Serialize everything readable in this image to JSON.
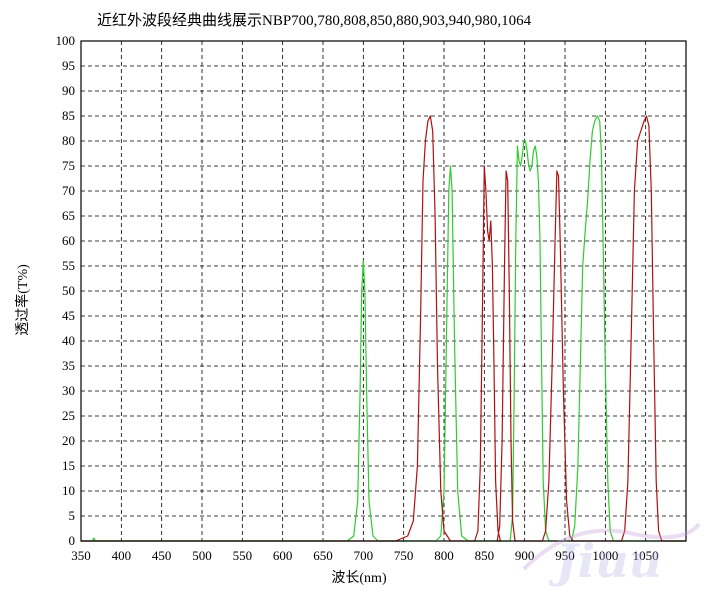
{
  "chart_data": {
    "type": "line",
    "title": "近红外波段经典曲线展示NBP700,780,808,850,880,903,940,980,1064",
    "xlabel": "波长(nm)",
    "ylabel": "透过率(T%)",
    "xlim": [
      350,
      1100
    ],
    "ylim": [
      0,
      100
    ],
    "xticks": [
      350,
      400,
      450,
      500,
      550,
      600,
      650,
      700,
      750,
      800,
      850,
      900,
      950,
      1000,
      1050
    ],
    "yticks": [
      0,
      5,
      10,
      15,
      20,
      25,
      30,
      35,
      40,
      45,
      50,
      55,
      60,
      65,
      70,
      75,
      80,
      85,
      90,
      95,
      100
    ],
    "grid": true,
    "series": [
      {
        "color": "#2ecc2e",
        "points": [
          [
            350,
            0
          ],
          [
            364,
            0
          ],
          [
            366,
            0.6
          ],
          [
            368,
            0
          ],
          [
            680,
            0
          ],
          [
            688,
            1
          ],
          [
            693,
            8
          ],
          [
            696,
            30
          ],
          [
            698,
            50
          ],
          [
            700,
            56
          ],
          [
            702,
            50
          ],
          [
            704,
            30
          ],
          [
            707,
            8
          ],
          [
            712,
            1
          ],
          [
            718,
            0
          ],
          [
            790,
            0
          ],
          [
            796,
            1
          ],
          [
            800,
            10
          ],
          [
            803,
            40
          ],
          [
            806,
            70
          ],
          [
            808,
            75
          ],
          [
            810,
            70
          ],
          [
            813,
            40
          ],
          [
            817,
            10
          ],
          [
            822,
            1
          ],
          [
            830,
            0
          ],
          [
            882,
            0
          ],
          [
            885,
            5
          ],
          [
            887,
            30
          ],
          [
            889,
            60
          ],
          [
            891,
            79
          ],
          [
            893,
            76
          ],
          [
            895,
            75
          ],
          [
            897,
            77
          ],
          [
            899,
            80
          ],
          [
            901,
            80
          ],
          [
            903,
            78
          ],
          [
            905,
            75
          ],
          [
            907,
            74
          ],
          [
            909,
            75
          ],
          [
            911,
            78
          ],
          [
            913,
            79
          ],
          [
            915,
            77
          ],
          [
            917,
            72
          ],
          [
            919,
            60
          ],
          [
            921,
            35
          ],
          [
            923,
            12
          ],
          [
            926,
            2
          ],
          [
            930,
            0
          ],
          [
            958,
            0
          ],
          [
            962,
            3
          ],
          [
            966,
            15
          ],
          [
            969,
            35
          ],
          [
            972,
            55
          ],
          [
            975,
            62
          ],
          [
            978,
            68
          ],
          [
            981,
            76
          ],
          [
            984,
            82
          ],
          [
            987,
            84
          ],
          [
            990,
            85
          ],
          [
            993,
            84
          ],
          [
            995,
            78
          ],
          [
            997,
            62
          ],
          [
            1000,
            35
          ],
          [
            1003,
            12
          ],
          [
            1006,
            2
          ],
          [
            1010,
            0
          ],
          [
            1100,
            0
          ]
        ]
      },
      {
        "color": "#b01010",
        "points": [
          [
            350,
            0
          ],
          [
            740,
            0
          ],
          [
            755,
            1
          ],
          [
            762,
            4
          ],
          [
            767,
            15
          ],
          [
            771,
            45
          ],
          [
            774,
            72
          ],
          [
            777,
            80
          ],
          [
            780,
            84
          ],
          [
            783,
            85
          ],
          [
            786,
            82
          ],
          [
            789,
            65
          ],
          [
            792,
            35
          ],
          [
            796,
            10
          ],
          [
            800,
            2
          ],
          [
            808,
            0
          ],
          [
            838,
            0
          ],
          [
            842,
            2
          ],
          [
            845,
            15
          ],
          [
            848,
            50
          ],
          [
            850,
            75
          ],
          [
            852,
            70
          ],
          [
            854,
            62
          ],
          [
            856,
            60
          ],
          [
            858,
            64
          ],
          [
            860,
            55
          ],
          [
            862,
            35
          ],
          [
            864,
            12
          ],
          [
            867,
            2
          ],
          [
            870,
            0
          ],
          [
            866,
            0
          ],
          [
            869,
            3
          ],
          [
            872,
            20
          ],
          [
            875,
            55
          ],
          [
            877,
            74
          ],
          [
            879,
            72
          ],
          [
            881,
            50
          ],
          [
            883,
            20
          ],
          [
            885,
            4
          ],
          [
            888,
            0
          ],
          [
            922,
            0
          ],
          [
            926,
            2
          ],
          [
            930,
            12
          ],
          [
            934,
            35
          ],
          [
            938,
            62
          ],
          [
            940,
            74
          ],
          [
            942,
            73
          ],
          [
            944,
            60
          ],
          [
            948,
            30
          ],
          [
            952,
            8
          ],
          [
            956,
            1
          ],
          [
            960,
            0
          ],
          [
            1020,
            0
          ],
          [
            1024,
            2
          ],
          [
            1028,
            12
          ],
          [
            1032,
            40
          ],
          [
            1036,
            70
          ],
          [
            1040,
            80
          ],
          [
            1044,
            82
          ],
          [
            1048,
            84
          ],
          [
            1051,
            85
          ],
          [
            1054,
            83
          ],
          [
            1057,
            70
          ],
          [
            1060,
            40
          ],
          [
            1063,
            12
          ],
          [
            1066,
            2
          ],
          [
            1070,
            0
          ],
          [
            1100,
            0
          ]
        ]
      }
    ]
  },
  "watermark": {
    "text": "Jiuu"
  }
}
